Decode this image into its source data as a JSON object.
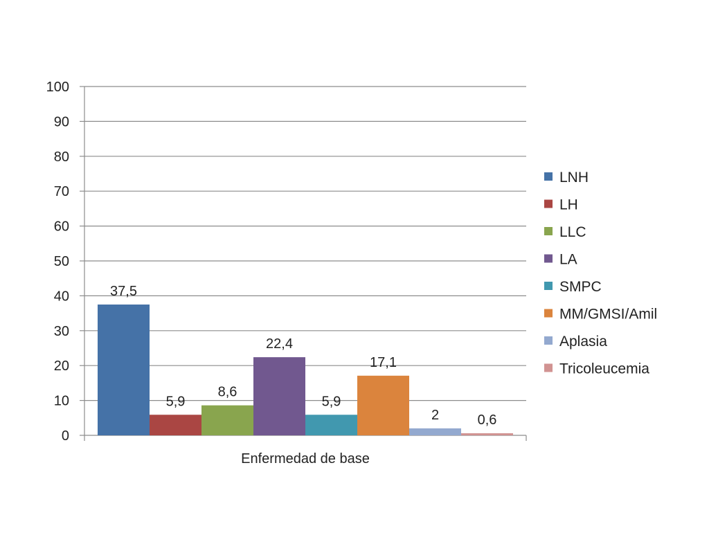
{
  "chart_data": {
    "type": "bar",
    "categories": [
      "Enfermedad de base"
    ],
    "series": [
      {
        "name": "LNH",
        "values": [
          37.5
        ],
        "label": "37,5",
        "color": "#4572A7"
      },
      {
        "name": "LH",
        "values": [
          5.9
        ],
        "label": "5,9",
        "color": "#AA4643"
      },
      {
        "name": "LLC",
        "values": [
          8.6
        ],
        "label": "8,6",
        "color": "#89A54E"
      },
      {
        "name": "LA",
        "values": [
          22.4
        ],
        "label": "22,4",
        "color": "#71588F"
      },
      {
        "name": "SMPC",
        "values": [
          5.9
        ],
        "label": "5,9",
        "color": "#4198AF"
      },
      {
        "name": "MM/GMSI/Amil",
        "values": [
          17.1
        ],
        "label": "17,1",
        "color": "#DB843D"
      },
      {
        "name": "Aplasia",
        "values": [
          2
        ],
        "label": "2",
        "color": "#93A9CF"
      },
      {
        "name": "Tricoleucemia",
        "values": [
          0.6
        ],
        "label": "0,6",
        "color": "#D19392"
      }
    ],
    "ylim": [
      0,
      100
    ],
    "yticks": [
      "0",
      "10",
      "20",
      "30",
      "40",
      "50",
      "60",
      "70",
      "80",
      "90",
      "100"
    ],
    "grid": true,
    "legend_position": "right",
    "xlabel": "",
    "ylabel": "",
    "title": ""
  }
}
